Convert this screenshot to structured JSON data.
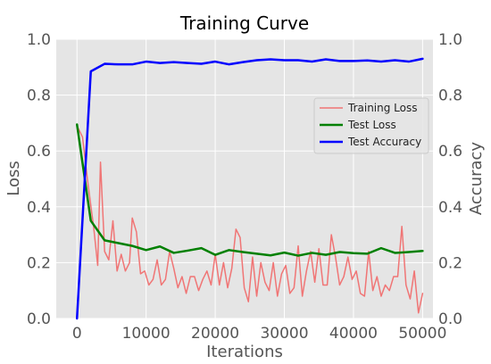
{
  "chart_data": {
    "type": "line",
    "title": "Training Curve",
    "xlabel": "Iterations",
    "ylabel_left": "Loss",
    "ylabel_right": "Accuracy",
    "xlim": [
      -3000,
      51500
    ],
    "ylim_left": [
      0.0,
      1.0
    ],
    "ylim_right": [
      0.0,
      1.0
    ],
    "xticks": [
      0,
      10000,
      20000,
      30000,
      40000,
      50000
    ],
    "yticks_left": [
      0.0,
      0.2,
      0.4,
      0.6,
      0.8,
      1.0
    ],
    "yticks_right": [
      0.0,
      0.2,
      0.4,
      0.6,
      0.8,
      1.0
    ],
    "xtick_labels": [
      "0",
      "10000",
      "20000",
      "30000",
      "40000",
      "50000"
    ],
    "ytick_labels_left": [
      "0.0",
      "0.2",
      "0.4",
      "0.6",
      "0.8",
      "1.0"
    ],
    "ytick_labels_right": [
      "0.0",
      "0.2",
      "0.4",
      "0.6",
      "0.8",
      "1.0"
    ],
    "grid": true,
    "legend_position": "center-right",
    "series": [
      {
        "name": "Training Loss",
        "axis": "left",
        "color": "#f07575",
        "x": [
          0,
          800,
          1600,
          2400,
          3000,
          3400,
          4000,
          4600,
          5200,
          5800,
          6400,
          7000,
          7600,
          8000,
          8600,
          9200,
          9800,
          10400,
          11000,
          11600,
          12200,
          12800,
          13400,
          14000,
          14600,
          15200,
          15800,
          16400,
          17000,
          17600,
          18200,
          18800,
          19400,
          20000,
          20600,
          21200,
          21800,
          22400,
          23000,
          23600,
          24200,
          24800,
          25400,
          26000,
          26600,
          27200,
          27800,
          28400,
          29000,
          29600,
          30200,
          30800,
          31400,
          32000,
          32600,
          33200,
          33800,
          34400,
          35000,
          35600,
          36200,
          36800,
          37400,
          38000,
          38600,
          39200,
          39800,
          40400,
          41000,
          41600,
          42200,
          42800,
          43400,
          44000,
          44600,
          45200,
          45800,
          46400,
          47000,
          47600,
          48200,
          48800,
          49400,
          50000
        ],
        "values": [
          0.69,
          0.65,
          0.48,
          0.33,
          0.19,
          0.56,
          0.24,
          0.21,
          0.35,
          0.17,
          0.23,
          0.17,
          0.2,
          0.36,
          0.31,
          0.16,
          0.17,
          0.12,
          0.14,
          0.21,
          0.12,
          0.14,
          0.24,
          0.18,
          0.11,
          0.15,
          0.09,
          0.15,
          0.15,
          0.1,
          0.14,
          0.17,
          0.12,
          0.23,
          0.12,
          0.2,
          0.11,
          0.18,
          0.32,
          0.29,
          0.11,
          0.06,
          0.22,
          0.08,
          0.2,
          0.13,
          0.1,
          0.2,
          0.08,
          0.16,
          0.19,
          0.09,
          0.11,
          0.26,
          0.08,
          0.17,
          0.24,
          0.13,
          0.25,
          0.12,
          0.12,
          0.3,
          0.22,
          0.12,
          0.15,
          0.22,
          0.14,
          0.17,
          0.09,
          0.08,
          0.24,
          0.1,
          0.15,
          0.08,
          0.12,
          0.1,
          0.15,
          0.15,
          0.33,
          0.12,
          0.07,
          0.17,
          0.02,
          0.09
        ]
      },
      {
        "name": "Test Loss",
        "axis": "left",
        "color": "#008000",
        "x": [
          0,
          2000,
          4000,
          6000,
          8000,
          10000,
          12000,
          14000,
          16000,
          18000,
          20000,
          22000,
          24000,
          26000,
          28000,
          30000,
          32000,
          34000,
          36000,
          38000,
          40000,
          42000,
          44000,
          46000,
          48000,
          50000
        ],
        "values": [
          0.695,
          0.35,
          0.28,
          0.27,
          0.26,
          0.245,
          0.258,
          0.235,
          0.243,
          0.252,
          0.228,
          0.245,
          0.238,
          0.232,
          0.226,
          0.236,
          0.225,
          0.235,
          0.228,
          0.238,
          0.234,
          0.232,
          0.252,
          0.235,
          0.238,
          0.242
        ]
      },
      {
        "name": "Test Accuracy",
        "axis": "right",
        "color": "#0000ff",
        "x": [
          0,
          2000,
          4000,
          6000,
          8000,
          10000,
          12000,
          14000,
          16000,
          18000,
          20000,
          22000,
          24000,
          26000,
          28000,
          30000,
          32000,
          34000,
          36000,
          38000,
          40000,
          42000,
          44000,
          46000,
          48000,
          50000
        ],
        "values": [
          0.0,
          0.885,
          0.912,
          0.91,
          0.91,
          0.92,
          0.915,
          0.918,
          0.915,
          0.912,
          0.92,
          0.91,
          0.918,
          0.925,
          0.928,
          0.925,
          0.925,
          0.92,
          0.928,
          0.922,
          0.922,
          0.924,
          0.92,
          0.925,
          0.92,
          0.93
        ]
      }
    ]
  }
}
